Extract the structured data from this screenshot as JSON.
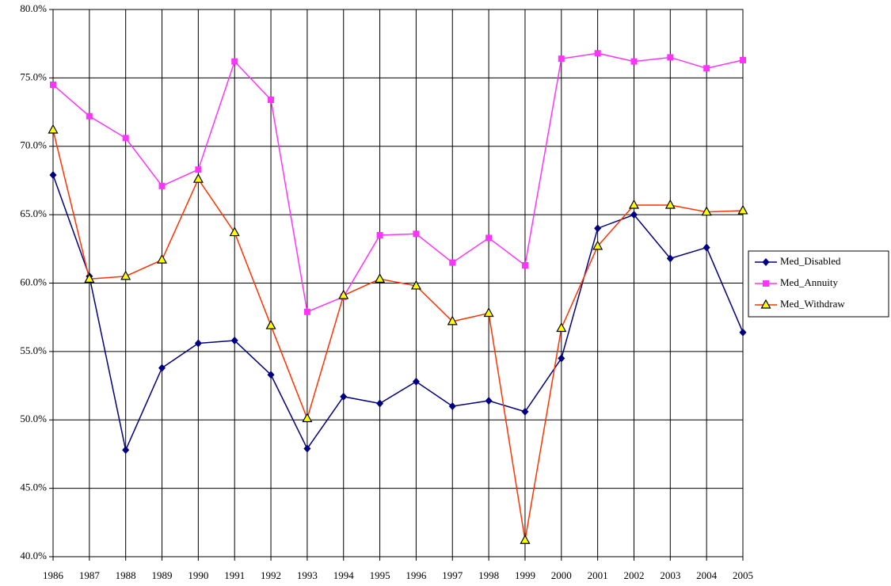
{
  "chart_data": {
    "type": "line",
    "x": [
      1986,
      1987,
      1988,
      1989,
      1990,
      1991,
      1992,
      1993,
      1994,
      1995,
      1996,
      1997,
      1998,
      1999,
      2000,
      2001,
      2002,
      2003,
      2004,
      2005
    ],
    "xlim": [
      1986,
      2005
    ],
    "xticks": [
      1986,
      1987,
      1988,
      1989,
      1990,
      1991,
      1992,
      1993,
      1994,
      1995,
      1996,
      1997,
      1998,
      1999,
      2000,
      2001,
      2002,
      2003,
      2004,
      2005
    ],
    "ylim": [
      40,
      80
    ],
    "yticks": [
      {
        "value": 40,
        "label": "40.0%"
      },
      {
        "value": 45,
        "label": "45.0%"
      },
      {
        "value": 50,
        "label": "50.0%"
      },
      {
        "value": 55,
        "label": "55.0%"
      },
      {
        "value": 60,
        "label": "60.0%"
      },
      {
        "value": 65,
        "label": "65.0%"
      },
      {
        "value": 70,
        "label": "70.0%"
      },
      {
        "value": 75,
        "label": "75.0%"
      },
      {
        "value": 80,
        "label": "80.0%"
      }
    ],
    "grid": true,
    "legend": "right",
    "series": [
      {
        "name": "Med_Disabled",
        "color": "#000080",
        "marker": "diamond",
        "values": [
          67.9,
          60.5,
          47.8,
          53.8,
          55.6,
          55.8,
          53.3,
          47.9,
          51.7,
          51.2,
          52.8,
          51.0,
          51.4,
          50.6,
          54.5,
          64.0,
          65.0,
          61.8,
          62.6,
          56.4
        ]
      },
      {
        "name": "Med_Annuity",
        "color": "#ff33ff",
        "marker": "square",
        "values": [
          74.5,
          72.2,
          70.6,
          67.1,
          68.3,
          76.2,
          73.4,
          57.9,
          59.0,
          63.5,
          63.6,
          61.5,
          63.3,
          61.3,
          76.4,
          76.8,
          76.2,
          76.5,
          75.7,
          76.3
        ]
      },
      {
        "name": "Med_Withdraw",
        "color": "#ff3300",
        "marker": "triangle",
        "values": [
          71.2,
          60.3,
          60.5,
          61.7,
          67.6,
          63.7,
          56.9,
          50.1,
          59.1,
          60.3,
          59.8,
          57.2,
          57.8,
          41.2,
          56.7,
          62.7,
          65.7,
          65.7,
          65.2,
          65.3
        ]
      }
    ]
  }
}
